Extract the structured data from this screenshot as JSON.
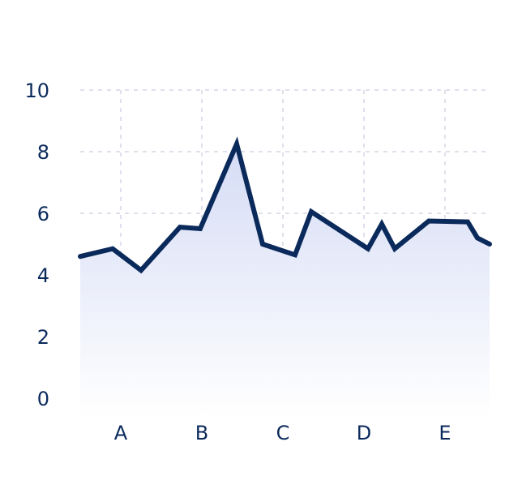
{
  "chart_data": {
    "type": "area",
    "title": "",
    "xlabel": "",
    "ylabel": "",
    "categories": [
      "A",
      "B",
      "C",
      "D",
      "E"
    ],
    "y_ticks": [
      "0",
      "2",
      "4",
      "6",
      "8",
      "10"
    ],
    "ylim": [
      0,
      10
    ],
    "xlim": [
      -0.5,
      4.55
    ],
    "grid": true,
    "legend": "none",
    "series": [
      {
        "x": [
          -0.5,
          -0.1,
          0.25,
          0.73,
          0.98,
          1.43,
          1.75,
          2.15,
          2.35,
          3.05,
          3.22,
          3.38,
          3.8,
          4.28,
          4.4,
          4.55
        ],
        "y": [
          4.6,
          4.85,
          4.15,
          5.55,
          5.5,
          8.25,
          5.0,
          4.65,
          6.05,
          4.85,
          5.65,
          4.85,
          5.75,
          5.72,
          5.2,
          5.0
        ]
      }
    ],
    "colors": {
      "line": "#0b2a5c",
      "fill_top": "#d5dcf5",
      "fill_bottom": "#ffffff",
      "grid": "#c9cde0",
      "text": "#0b2a5c"
    }
  }
}
